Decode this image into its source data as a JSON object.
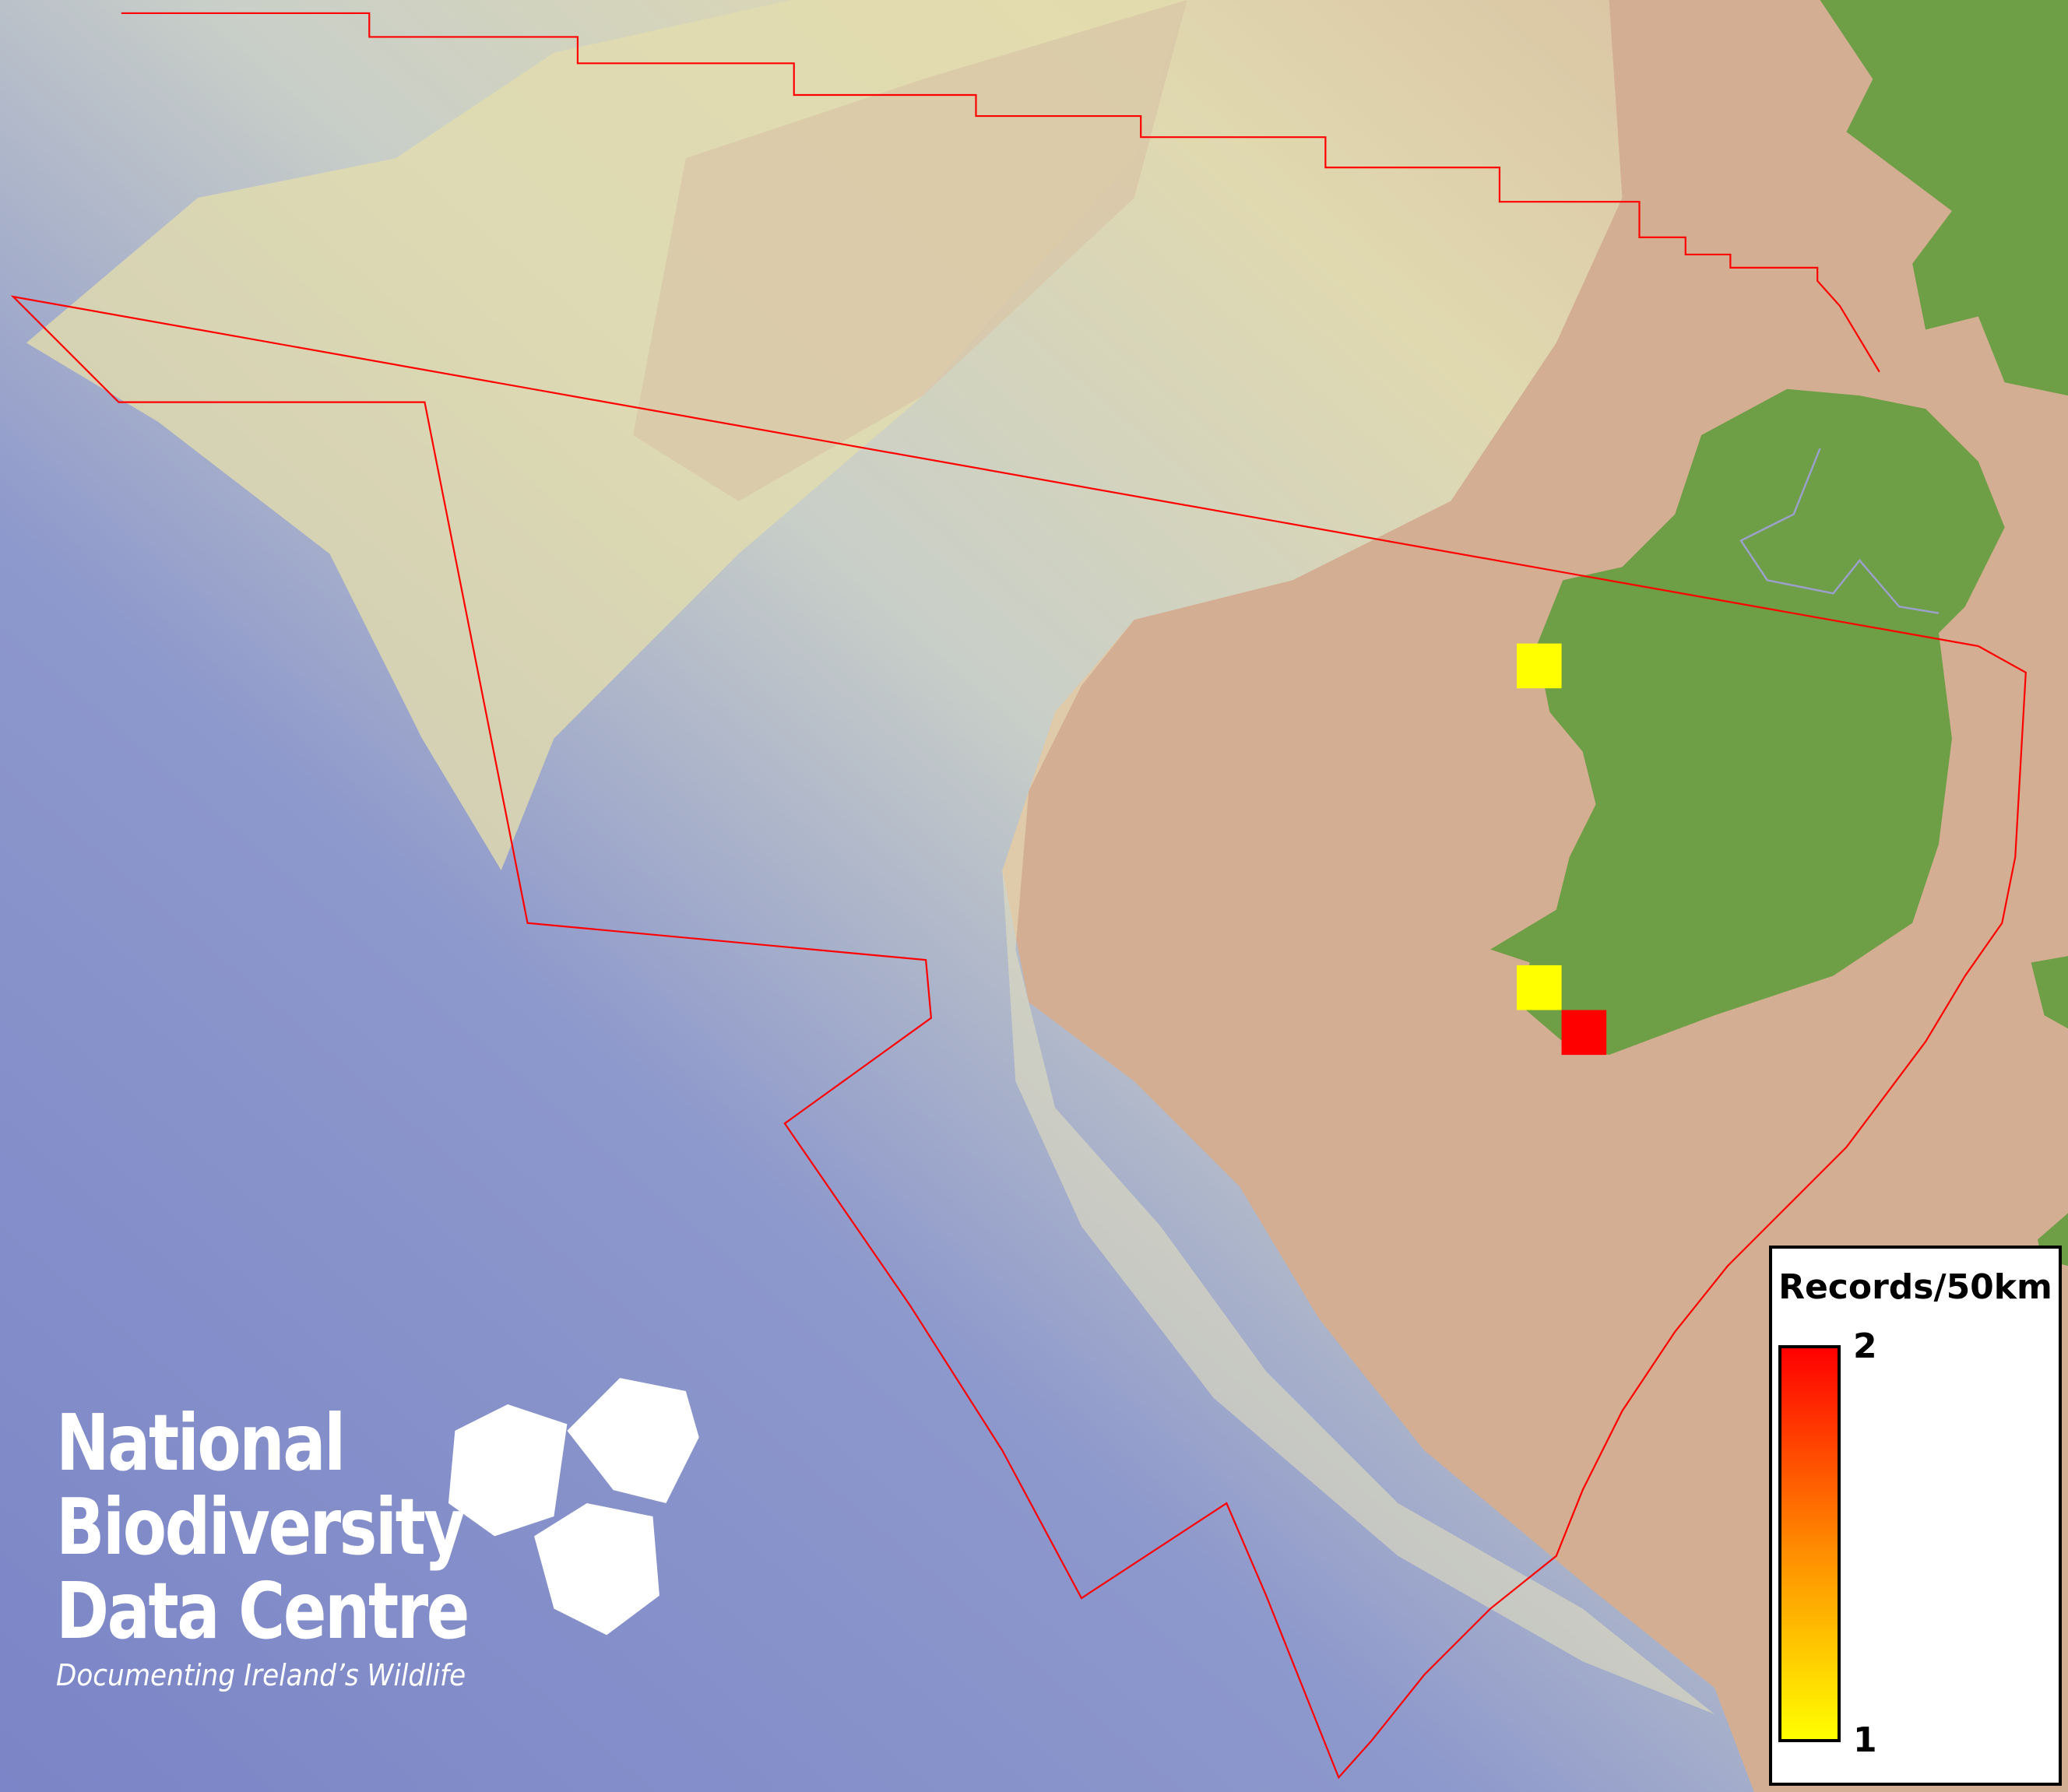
{
  "legend": {
    "title": "Records/50km",
    "max_label": "2",
    "min_label": "1",
    "color_max": "#ff0000",
    "color_min": "#ffff00"
  },
  "records": [
    {
      "value": 1,
      "color": "#ffff00",
      "location": "west Mayo/Galway coast"
    },
    {
      "value": 1,
      "color": "#ffff00",
      "location": "Kerry coast"
    },
    {
      "value": 2,
      "color": "#ff0000",
      "location": "south-west Kerry"
    }
  ],
  "logo": {
    "line1": "National",
    "line2": "Biodiversity",
    "line3": "Data Centre",
    "tagline": "Documenting Ireland’s Wildlife"
  },
  "colors": {
    "deep_sea": "#7d86c6",
    "shelf": "#d9d2b0",
    "land": "#6e9e45",
    "shallow": "#d4ad92",
    "boundary": "#ff0000"
  }
}
